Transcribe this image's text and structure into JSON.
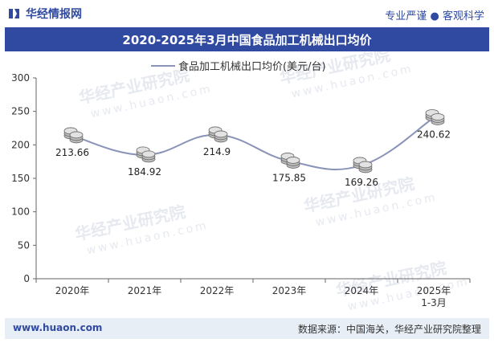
{
  "header": {
    "brand": "华经情报网",
    "tagline": "专业严谨 ● 客观科学"
  },
  "chart_data": {
    "type": "line",
    "title": "2020-2025年3月中国食品加工机械出口均价",
    "legend": "食品加工机械出口均价(美元/台)",
    "categories": [
      "2020年",
      "2021年",
      "2022年",
      "2023年",
      "2024年",
      "2025年\n1-3月"
    ],
    "category_lines": [
      [
        "2020年"
      ],
      [
        "2021年"
      ],
      [
        "2022年"
      ],
      [
        "2023年"
      ],
      [
        "2024年"
      ],
      [
        "2025年",
        "1-3月"
      ]
    ],
    "values": [
      213.66,
      184.92,
      214.9,
      175.85,
      169.26,
      240.62
    ],
    "labels": [
      "213.66",
      "184.92",
      "214.9",
      "175.85",
      "169.26",
      "240.62"
    ],
    "ylim": [
      0,
      300
    ],
    "yticks": [
      "0",
      "50",
      "100",
      "150",
      "200",
      "250",
      "300"
    ],
    "line_color": "#8a93b8"
  },
  "watermark": {
    "text": "华经产业研究院",
    "url": "www.huaon.com"
  },
  "footer": {
    "left": "www.huaon.com",
    "right": "数据来源：中国海关，华经产业研究院整理"
  }
}
